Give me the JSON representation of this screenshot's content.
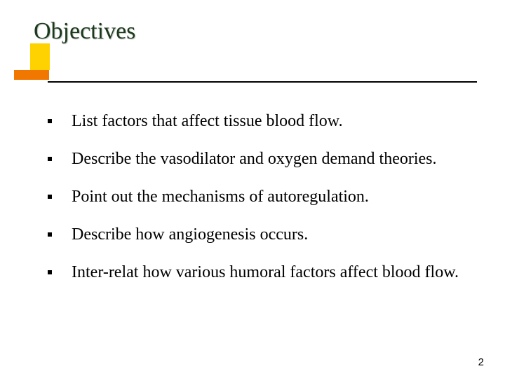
{
  "title": "Objectives",
  "title_color": "#1b3a1b",
  "title_fontsize": 34,
  "accent_yellow": "#fed100",
  "accent_orange": "#f07800",
  "underline_color": "#000000",
  "bullets": [
    "List factors that affect tissue blood flow.",
    "Describe the vasodilator and oxygen demand theories.",
    "Point out the mechanisms of autoregulation.",
    "Describe how angiogenesis occurs.",
    "Inter-relat how various humoral factors affect blood flow."
  ],
  "bullet_fontsize": 24,
  "page_number": "2",
  "background_color": "#ffffff"
}
